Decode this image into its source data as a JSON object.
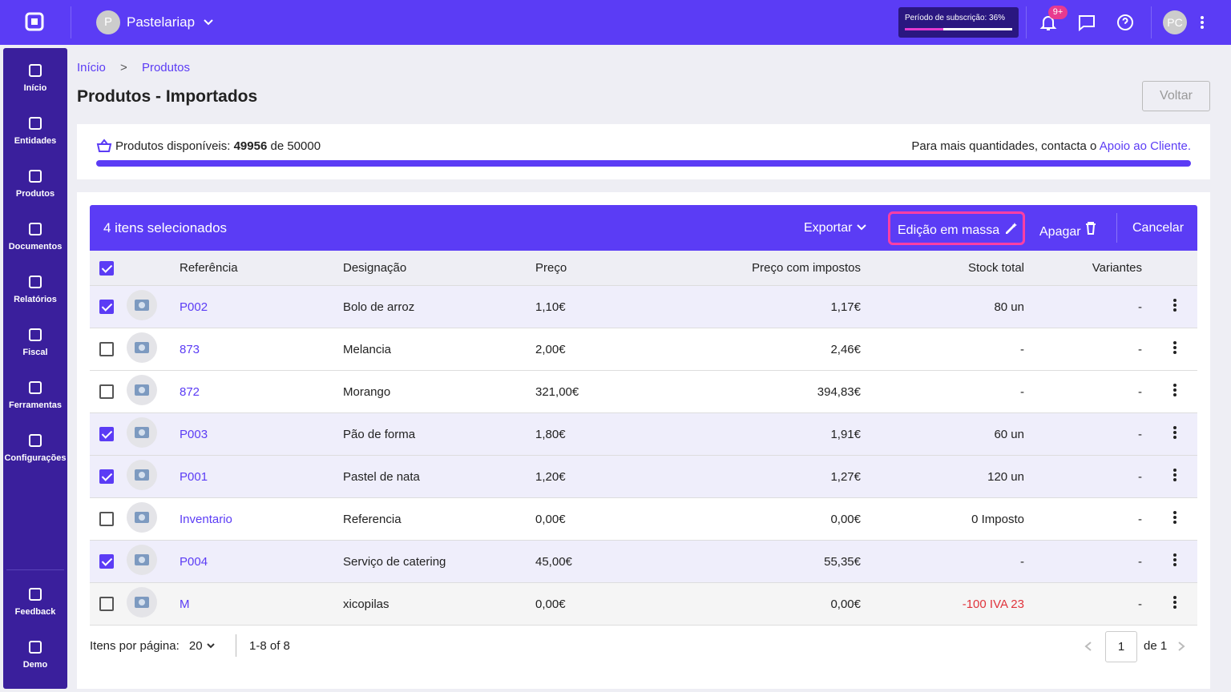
{
  "topbar": {
    "company_initial": "P",
    "company": "Pastelariap",
    "subscription": "Período de subscrição: 36%",
    "notifications_badge": "9+",
    "user_initials": "PC"
  },
  "sidebar": {
    "items": [
      "Início",
      "Entidades",
      "Produtos",
      "Documentos",
      "Relatórios",
      "Fiscal",
      "Ferramentas",
      "Configurações"
    ],
    "bottom_items": [
      "Feedback",
      "Demo"
    ]
  },
  "breadcrumb": [
    "Início",
    "Produtos"
  ],
  "header": {
    "title": "Produtos - Importados",
    "back_button": "Voltar"
  },
  "quota": {
    "label": "Produtos disponíveis:",
    "available": 49956,
    "of": "de",
    "total": 50000,
    "note": "Para mais quantidades, contacta o",
    "link": "Apoio ao Cliente."
  },
  "toolbar": {
    "selected": "4 itens selecionados",
    "export": "Exportar",
    "mass_edit": "Edição em massa",
    "delete": "Apagar",
    "cancel": "Cancelar"
  },
  "table": {
    "columns": [
      "Referência",
      "Designação",
      "Preço",
      "Preço com impostos",
      "Stock total",
      "Variantes"
    ],
    "rows": [
      {
        "checked": true,
        "ref": "P002",
        "name": "Bolo de arroz",
        "price": "1,10€",
        "price_tax": "1,17€",
        "stock": "80 un",
        "variants": "-"
      },
      {
        "checked": false,
        "ref": "873",
        "name": "Melancia",
        "price": "2,00€",
        "price_tax": "2,46€",
        "stock": "-",
        "variants": "-"
      },
      {
        "checked": false,
        "ref": "872",
        "name": "Morango",
        "price": "321,00€",
        "price_tax": "394,83€",
        "stock": "-",
        "variants": "-"
      },
      {
        "checked": true,
        "ref": "P003",
        "name": "Pão de forma",
        "price": "1,80€",
        "price_tax": "1,91€",
        "stock": "60 un",
        "variants": "-"
      },
      {
        "checked": true,
        "ref": "P001",
        "name": "Pastel de nata",
        "price": "1,20€",
        "price_tax": "1,27€",
        "stock": "120 un",
        "variants": "-"
      },
      {
        "checked": false,
        "ref": "Inventario",
        "name": "Referencia",
        "price": "0,00€",
        "price_tax": "0,00€",
        "stock": "0 Imposto",
        "variants": "-"
      },
      {
        "checked": true,
        "ref": "P004",
        "name": "Serviço de catering",
        "price": "45,00€",
        "price_tax": "55,35€",
        "stock": "-",
        "variants": "-"
      },
      {
        "checked": false,
        "ref": "M",
        "name": "xicopilas",
        "price": "0,00€",
        "price_tax": "0,00€",
        "stock": "-100 IVA 23",
        "variants": "-",
        "stock_negative": true
      }
    ]
  },
  "pagination": {
    "per_page_label": "Itens por página:",
    "per_page": "20",
    "range": "1-8 of 8",
    "page": "1",
    "of_pages": "de 1"
  }
}
